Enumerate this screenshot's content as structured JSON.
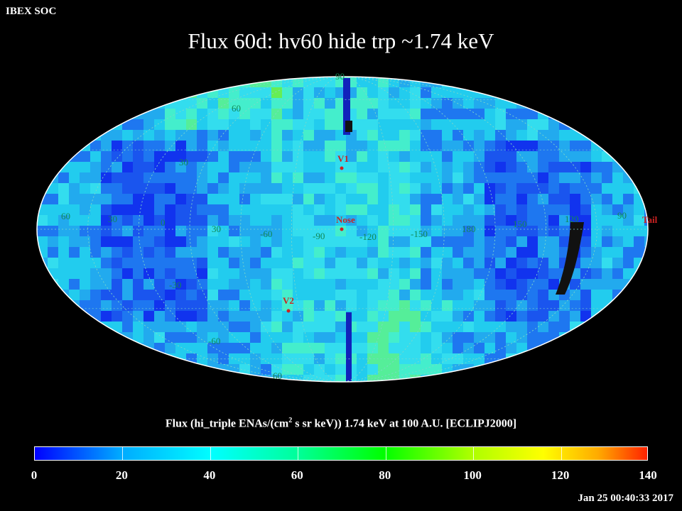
{
  "header": {
    "org": "IBEX SOC",
    "title": "Flux   60d: hv60 hide trp ~1.74 keV"
  },
  "map": {
    "projection": "Mollweide",
    "lon_labels_top": [
      "60",
      "30",
      "0",
      "30",
      "-60",
      "-90",
      "-120",
      "-150",
      "180",
      "150",
      "120",
      "90"
    ],
    "lat_labels": [
      "60",
      "30",
      "60",
      "30",
      "-60",
      "-30",
      "90",
      "60"
    ],
    "markers": [
      {
        "label": "V1",
        "color": "#cc2222"
      },
      {
        "label": "Nose",
        "color": "#cc2222"
      },
      {
        "label": "Tail",
        "color": "#cc2222"
      },
      {
        "label": "V2",
        "color": "#cc2222"
      }
    ]
  },
  "colorbar": {
    "title_pre": "Flux (hi_triple ENAs/(cm",
    "title_sup": "2",
    "title_post": " s sr keV))  1.74 keV at 100 A.U. [ECLIPJ2000]",
    "labels": [
      "0",
      "20",
      "40",
      "60",
      "80",
      "100",
      "120",
      "140"
    ],
    "range": [
      0,
      140
    ]
  },
  "footer": {
    "timestamp": "Jan 25 00:40:33 2017"
  }
}
